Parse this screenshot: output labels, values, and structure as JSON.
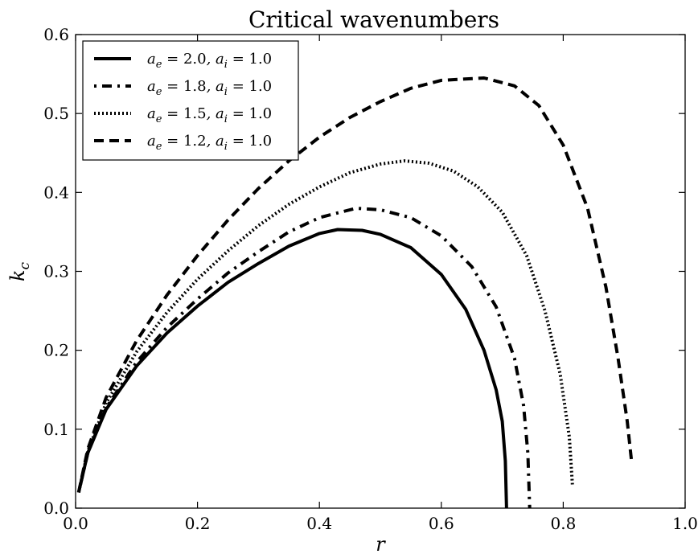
{
  "chart_data": {
    "type": "line",
    "title": "Critical wavenumbers",
    "xlabel": "r",
    "ylabel": "k_c",
    "ylabel_parts": {
      "main": "k",
      "sub": "c"
    },
    "xlim": [
      0.0,
      1.0
    ],
    "ylim": [
      0.0,
      0.6
    ],
    "xticks": [
      "0.0",
      "0.2",
      "0.4",
      "0.6",
      "0.8",
      "1.0"
    ],
    "yticks": [
      "0.0",
      "0.1",
      "0.2",
      "0.3",
      "0.4",
      "0.5",
      "0.6"
    ],
    "grid": false,
    "legend_position": "top-left",
    "series": [
      {
        "name": "a_e = 2.0, a_i = 1.0",
        "label_parts": {
          "ae": "2.0",
          "ai": "1.0"
        },
        "style": "solid",
        "x": [
          0.005,
          0.02,
          0.05,
          0.1,
          0.15,
          0.2,
          0.25,
          0.3,
          0.35,
          0.4,
          0.43,
          0.47,
          0.5,
          0.55,
          0.6,
          0.64,
          0.67,
          0.69,
          0.7,
          0.705,
          0.707
        ],
        "y": [
          0.02,
          0.07,
          0.125,
          0.18,
          0.222,
          0.256,
          0.286,
          0.31,
          0.332,
          0.348,
          0.353,
          0.352,
          0.347,
          0.33,
          0.296,
          0.252,
          0.2,
          0.15,
          0.11,
          0.06,
          0.0
        ]
      },
      {
        "name": "a_e = 1.8, a_i = 1.0",
        "label_parts": {
          "ae": "1.8",
          "ai": "1.0"
        },
        "style": "dashdot",
        "x": [
          0.005,
          0.02,
          0.05,
          0.1,
          0.15,
          0.2,
          0.25,
          0.3,
          0.35,
          0.4,
          0.46,
          0.5,
          0.55,
          0.6,
          0.65,
          0.69,
          0.72,
          0.735,
          0.742,
          0.745
        ],
        "y": [
          0.02,
          0.07,
          0.127,
          0.185,
          0.229,
          0.265,
          0.298,
          0.325,
          0.35,
          0.368,
          0.38,
          0.378,
          0.368,
          0.345,
          0.306,
          0.255,
          0.19,
          0.13,
          0.07,
          0.0
        ]
      },
      {
        "name": "a_e = 1.5, a_i = 1.0",
        "label_parts": {
          "ae": "1.5",
          "ai": "1.0"
        },
        "style": "dotted",
        "x": [
          0.005,
          0.02,
          0.05,
          0.1,
          0.15,
          0.2,
          0.25,
          0.3,
          0.35,
          0.4,
          0.45,
          0.5,
          0.54,
          0.58,
          0.62,
          0.66,
          0.7,
          0.74,
          0.77,
          0.795,
          0.81,
          0.815
        ],
        "y": [
          0.02,
          0.072,
          0.133,
          0.198,
          0.248,
          0.29,
          0.326,
          0.358,
          0.385,
          0.407,
          0.425,
          0.436,
          0.44,
          0.437,
          0.427,
          0.407,
          0.375,
          0.32,
          0.25,
          0.17,
          0.09,
          0.03
        ]
      },
      {
        "name": "a_e = 1.2, a_i = 1.0",
        "label_parts": {
          "ae": "1.2",
          "ai": "1.0"
        },
        "style": "dashed",
        "x": [
          0.005,
          0.02,
          0.05,
          0.1,
          0.15,
          0.2,
          0.25,
          0.3,
          0.35,
          0.4,
          0.45,
          0.5,
          0.55,
          0.6,
          0.67,
          0.72,
          0.76,
          0.8,
          0.84,
          0.87,
          0.89,
          0.905,
          0.912
        ],
        "y": [
          0.02,
          0.075,
          0.14,
          0.212,
          0.27,
          0.32,
          0.365,
          0.405,
          0.44,
          0.47,
          0.495,
          0.515,
          0.532,
          0.542,
          0.545,
          0.535,
          0.51,
          0.46,
          0.38,
          0.28,
          0.19,
          0.11,
          0.06
        ]
      }
    ]
  }
}
